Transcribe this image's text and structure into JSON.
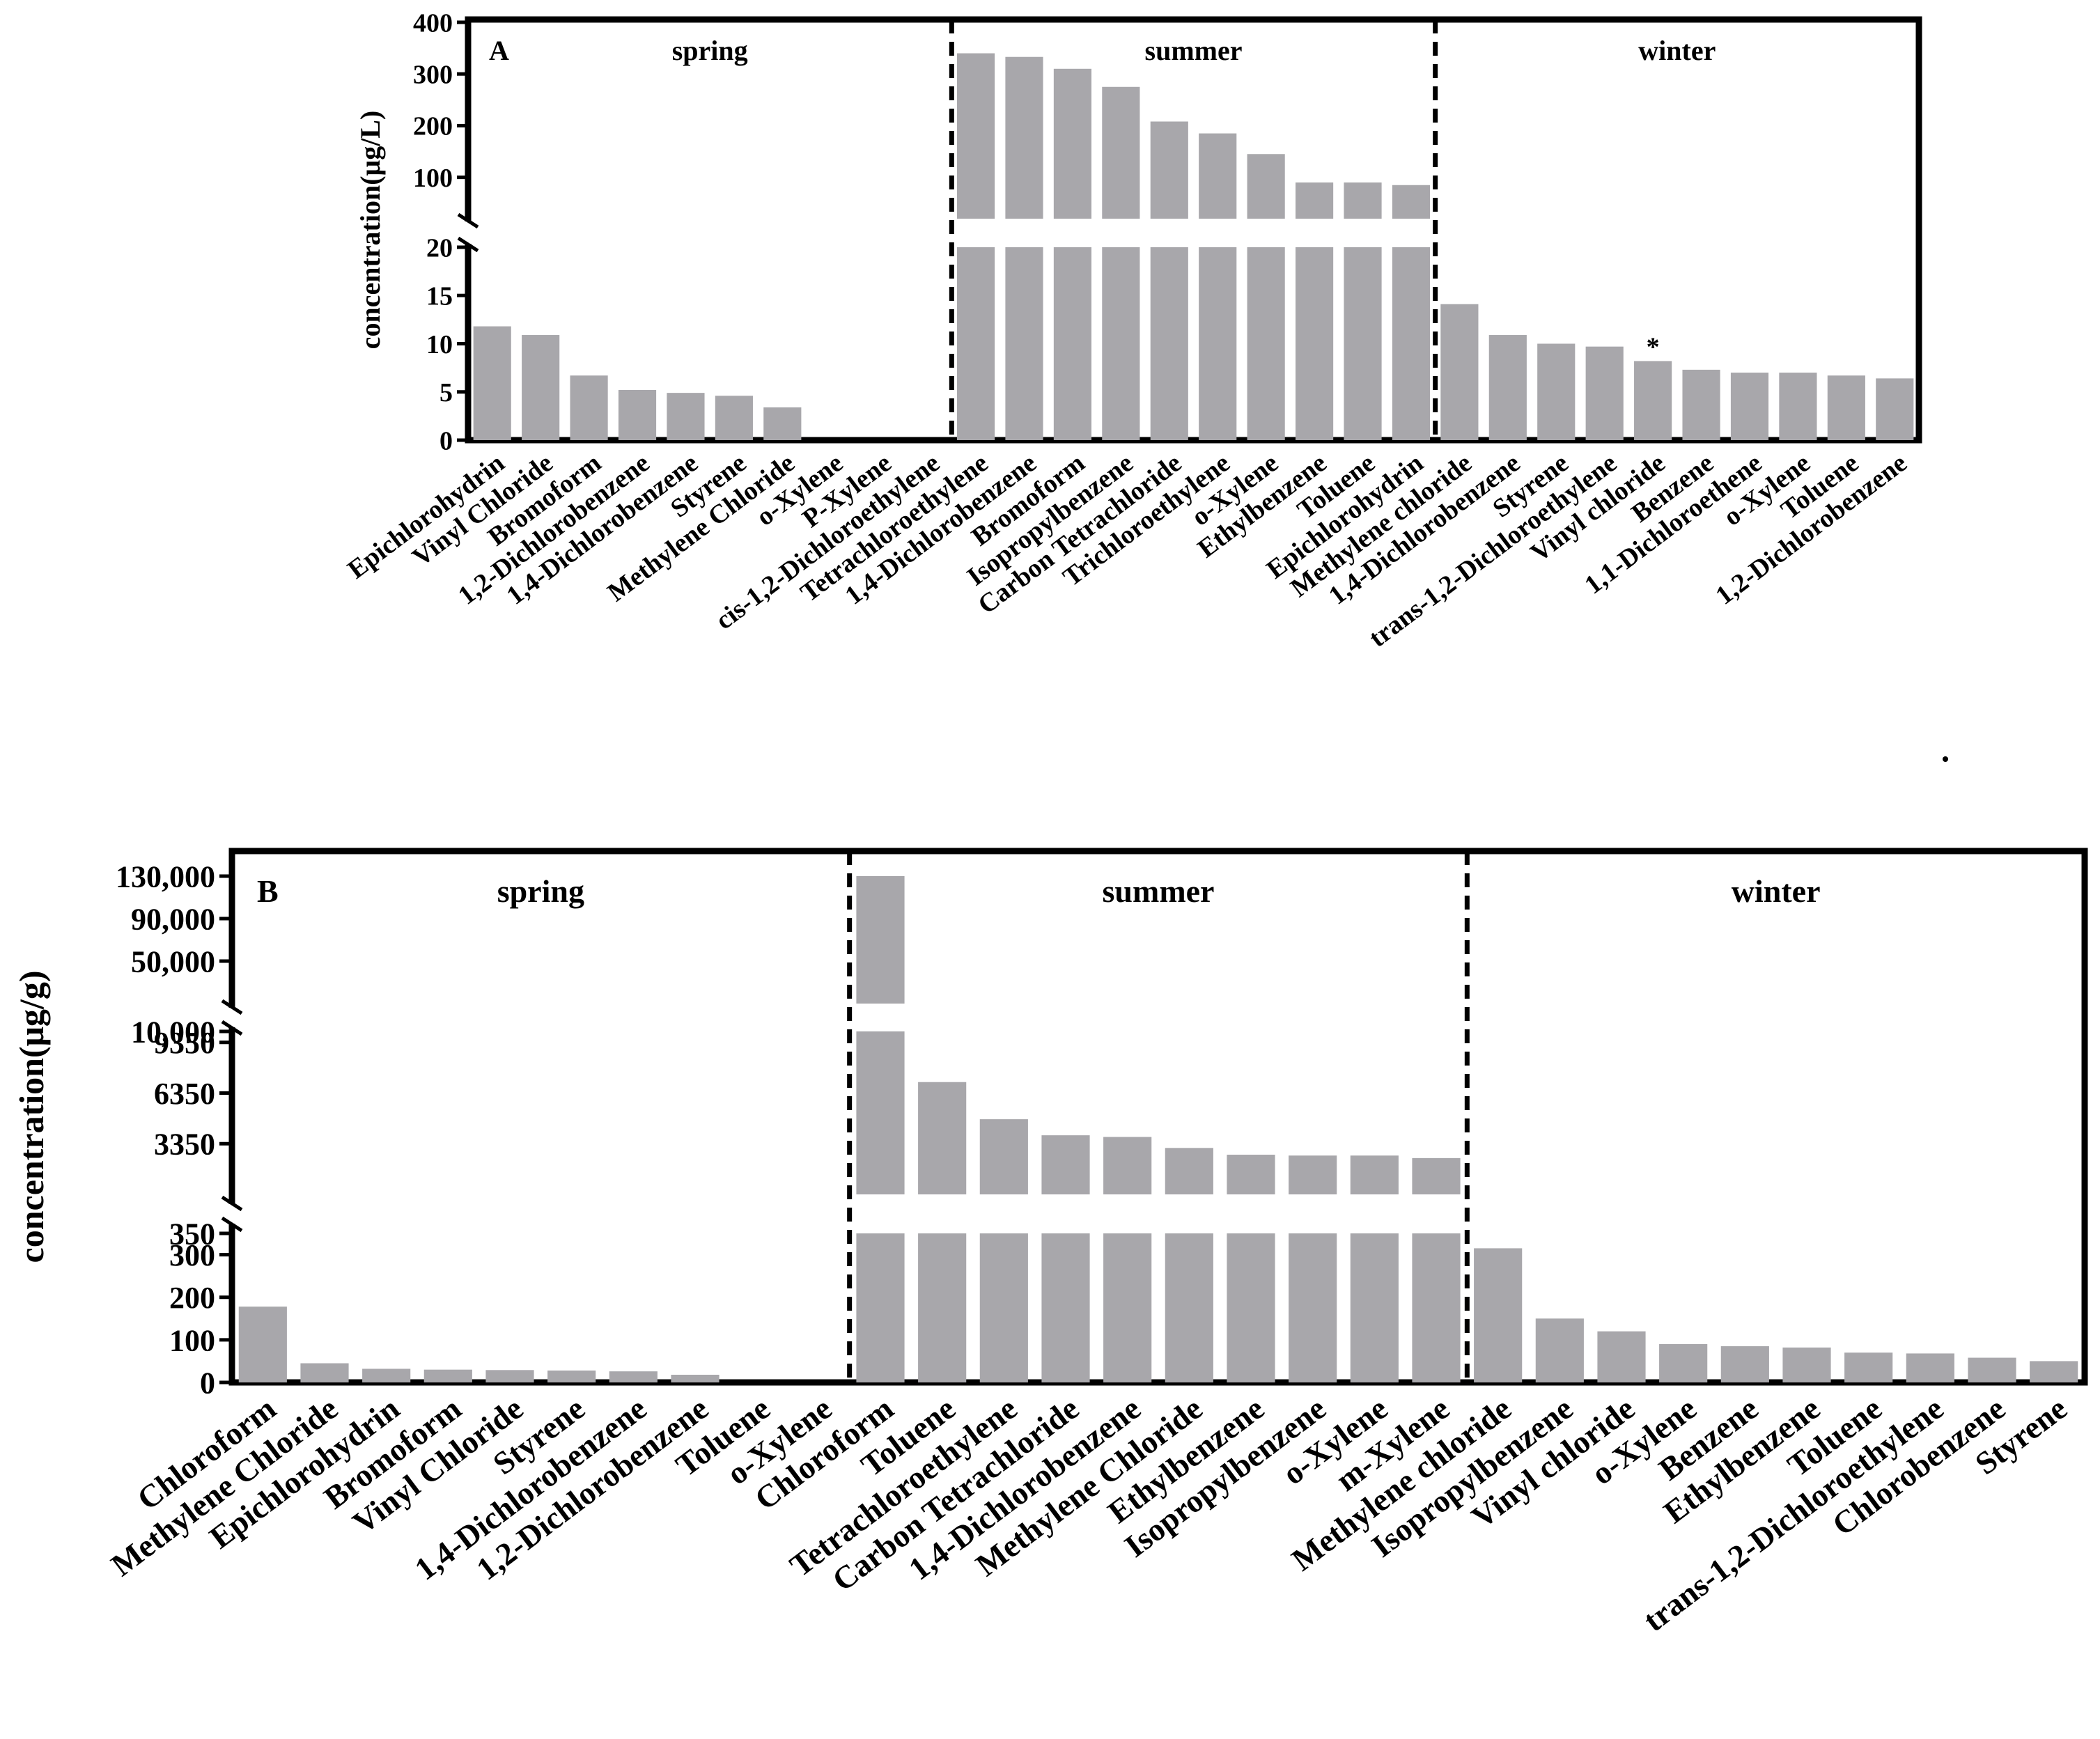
{
  "chart_data": [
    {
      "type": "bar",
      "panel_label": "A",
      "ylabel": "concentration(μg/L)",
      "y_axis_break": {
        "lower": [
          0,
          20
        ],
        "upper": [
          20,
          400
        ]
      },
      "lower_ticks": [
        0,
        5,
        10,
        15,
        20
      ],
      "upper_ticks": [
        100,
        200,
        300,
        400
      ],
      "lower_tick_labels": [
        "0",
        "5",
        "10",
        "15",
        "20"
      ],
      "upper_tick_labels": [
        "100",
        "200",
        "300",
        "400"
      ],
      "bar_color": "#a8a7ab",
      "grid": false,
      "groups": [
        {
          "name": "spring",
          "categories": [
            "Epichlorohydrin",
            "Vinyl Chloride",
            "Bromoform",
            "1,2-Dichlorobenzene",
            "1,4-Dichlorobenzene",
            "Styrene",
            "Methylene Chloride",
            "o-Xylene",
            "P-Xylene",
            "cis-1,2-Dichloroethylene"
          ],
          "values": [
            11.8,
            10.9,
            6.7,
            5.2,
            4.9,
            4.6,
            3.4,
            0,
            0,
            0
          ]
        },
        {
          "name": "summer",
          "categories": [
            "Tetrachloroethylene",
            "1,4-Dichlorobenzene",
            "Bromoform",
            "Isopropylbenzene",
            "Carbon Tetrachloride",
            "Trichloroethylene",
            "o-Xylene",
            "Ethylbenzene",
            "Toluene",
            "Epichlorohydrin"
          ],
          "values": [
            340,
            333,
            310,
            275,
            208,
            185,
            145,
            90,
            90,
            85
          ]
        },
        {
          "name": "winter",
          "categories": [
            "Methylene chloride",
            "1,4-Dichlorobenzene",
            "Styrene",
            "trans-1,2-Dichloroethylene",
            "Vinyl chloride",
            "Benzene",
            "1,1-Dichloroethene",
            "o-Xylene",
            "Toluene",
            "1,2-Dichlorobenzene"
          ],
          "values": [
            14.1,
            10.9,
            10.0,
            9.7,
            8.2,
            7.3,
            7.0,
            7.0,
            6.7,
            6.4
          ],
          "annotation": {
            "category_index": 4,
            "text": "*"
          }
        }
      ]
    },
    {
      "type": "bar",
      "panel_label": "B",
      "ylabel": "concentration(μg/g)",
      "y_axis_break": {
        "lower": [
          0,
          350
        ],
        "middle": [
          350,
          10000
        ],
        "upper": [
          10000,
          130000
        ]
      },
      "lower_ticks": [
        0,
        100,
        200,
        300
      ],
      "middle_ticks": [
        350,
        3350,
        6350,
        9350
      ],
      "upper_ticks": [
        10000,
        50000,
        90000,
        130000
      ],
      "lower_tick_labels": [
        "0",
        "100",
        "200",
        "300"
      ],
      "middle_tick_labels": [
        "350",
        "3350",
        "6350",
        "9350"
      ],
      "upper_tick_labels": [
        "10,000",
        "50,000",
        "90,000",
        "130,000"
      ],
      "bar_color": "#a8a7ab",
      "grid": false,
      "groups": [
        {
          "name": "spring",
          "categories": [
            "Chloroform",
            "Methylene Chloride",
            "Epichlorohydrin",
            "Bromoform",
            "Vinyl Chloride",
            "Styrene",
            "1,4-Dichlorobenzene",
            "1,2-Dichlorobenzene",
            "Toluene",
            "o-Xylene"
          ],
          "values": [
            178,
            45,
            32,
            30,
            29,
            28,
            26,
            18,
            0,
            0
          ]
        },
        {
          "name": "summer",
          "categories": [
            "Chloroform",
            "Toluene",
            "Tetrachloroethylene",
            "Carbon Tetrachloride",
            "1,4-Dichlorobenzene",
            "Methylene Chloride",
            "Ethylbenzene",
            "Isopropylbenzene",
            "o-Xylene",
            "m-Xylene"
          ],
          "values": [
            130000,
            7000,
            4800,
            3850,
            3750,
            3100,
            2700,
            2650,
            2650,
            2500
          ]
        },
        {
          "name": "winter",
          "categories": [
            "Methylene chloride",
            "Isopropylbenzene",
            "Vinyl chloride",
            "o-Xylene",
            "Benzene",
            "Ethylbenzene",
            "Toluene",
            "trans-1,2-Dichloroethylene",
            "Chlorobenzene",
            "Styrene"
          ],
          "values": [
            315,
            150,
            120,
            90,
            85,
            82,
            70,
            68,
            58,
            50
          ]
        }
      ]
    }
  ]
}
